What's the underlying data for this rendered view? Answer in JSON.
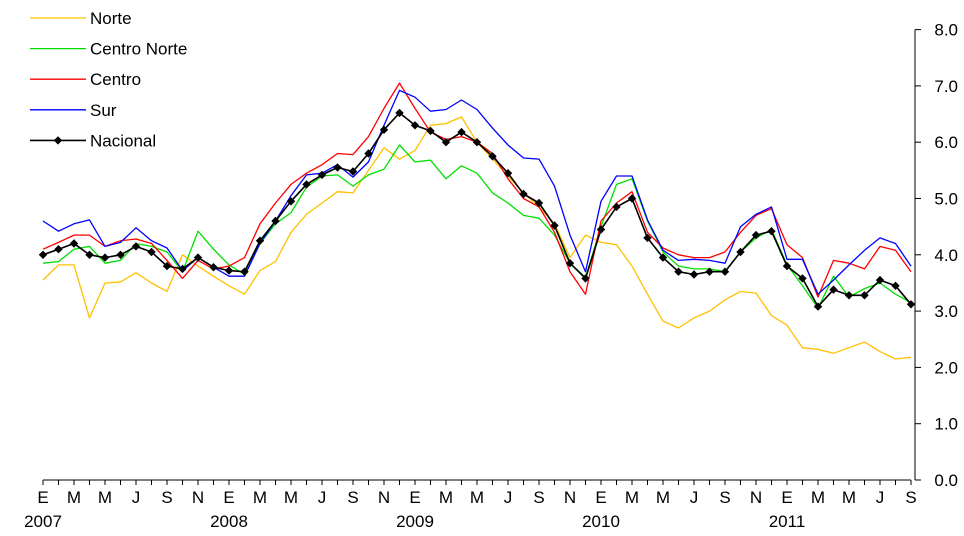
{
  "chart_data": {
    "type": "line",
    "title": "",
    "xlabel": "",
    "ylabel": "",
    "ylim": [
      0,
      8
    ],
    "yticks": [
      "0.0",
      "1.0",
      "2.0",
      "3.0",
      "4.0",
      "5.0",
      "6.0",
      "7.0",
      "8.0"
    ],
    "y_axis_side": "right",
    "grid": false,
    "legend_position": "top-left",
    "x_tick_labels": [
      "E",
      "M",
      "M",
      "J",
      "S",
      "N",
      "E",
      "M",
      "M",
      "J",
      "S",
      "N",
      "E",
      "M",
      "M",
      "J",
      "S",
      "N",
      "E",
      "M",
      "M",
      "J",
      "S",
      "N",
      "E",
      "M",
      "M",
      "J",
      "S"
    ],
    "year_labels": [
      {
        "label": "2007",
        "month_index": 0
      },
      {
        "label": "2008",
        "month_index": 12
      },
      {
        "label": "2009",
        "month_index": 24
      },
      {
        "label": "2010",
        "month_index": 36
      },
      {
        "label": "2011",
        "month_index": 48
      }
    ],
    "x": [
      "2007-01",
      "2007-02",
      "2007-03",
      "2007-04",
      "2007-05",
      "2007-06",
      "2007-07",
      "2007-08",
      "2007-09",
      "2007-10",
      "2007-11",
      "2007-12",
      "2008-01",
      "2008-02",
      "2008-03",
      "2008-04",
      "2008-05",
      "2008-06",
      "2008-07",
      "2008-08",
      "2008-09",
      "2008-10",
      "2008-11",
      "2008-12",
      "2009-01",
      "2009-02",
      "2009-03",
      "2009-04",
      "2009-05",
      "2009-06",
      "2009-07",
      "2009-08",
      "2009-09",
      "2009-10",
      "2009-11",
      "2009-12",
      "2010-01",
      "2010-02",
      "2010-03",
      "2010-04",
      "2010-05",
      "2010-06",
      "2010-07",
      "2010-08",
      "2010-09",
      "2010-10",
      "2010-11",
      "2010-12",
      "2011-01",
      "2011-02",
      "2011-03",
      "2011-04",
      "2011-05",
      "2011-06",
      "2011-07",
      "2011-08",
      "2011-09"
    ],
    "series": [
      {
        "name": "Norte",
        "color": "#FFC000",
        "marker": false,
        "values": [
          3.55,
          3.82,
          3.82,
          2.88,
          3.5,
          3.52,
          3.68,
          3.5,
          3.35,
          4.0,
          3.8,
          3.62,
          3.45,
          3.3,
          3.72,
          3.88,
          4.4,
          4.72,
          4.92,
          5.12,
          5.1,
          5.5,
          5.9,
          5.7,
          5.85,
          6.3,
          6.33,
          6.45,
          6.0,
          5.7,
          5.4,
          5.1,
          4.85,
          4.55,
          3.95,
          4.35,
          4.22,
          4.18,
          3.8,
          3.3,
          2.82,
          2.7,
          2.88,
          3.0,
          3.2,
          3.35,
          3.32,
          2.92,
          2.75,
          2.35,
          2.32,
          2.25,
          2.35,
          2.45,
          2.28,
          2.15,
          2.18
        ]
      },
      {
        "name": "Centro Norte",
        "color": "#00E000",
        "marker": false,
        "values": [
          3.85,
          3.88,
          4.1,
          4.15,
          3.85,
          3.9,
          4.2,
          4.15,
          4.05,
          3.7,
          4.42,
          4.1,
          3.82,
          3.65,
          4.2,
          4.55,
          4.75,
          5.2,
          5.4,
          5.42,
          5.22,
          5.42,
          5.52,
          5.95,
          5.65,
          5.68,
          5.35,
          5.58,
          5.45,
          5.1,
          4.92,
          4.7,
          4.65,
          4.35,
          3.85,
          3.6,
          4.5,
          5.25,
          5.35,
          4.6,
          4.05,
          3.8,
          3.75,
          3.75,
          3.7,
          4.05,
          4.3,
          4.45,
          3.82,
          3.45,
          3.05,
          3.62,
          3.25,
          3.4,
          3.5,
          3.3,
          3.15
        ]
      },
      {
        "name": "Centro",
        "color": "#FF0000",
        "marker": false,
        "values": [
          4.1,
          4.22,
          4.35,
          4.35,
          4.15,
          4.25,
          4.28,
          4.2,
          3.9,
          3.58,
          3.9,
          3.75,
          3.8,
          3.95,
          4.55,
          4.92,
          5.25,
          5.45,
          5.6,
          5.8,
          5.78,
          6.1,
          6.6,
          7.05,
          6.6,
          6.18,
          6.05,
          6.1,
          6.0,
          5.8,
          5.35,
          5.0,
          4.85,
          4.4,
          3.7,
          3.3,
          4.6,
          4.92,
          5.12,
          4.4,
          4.12,
          4.0,
          3.95,
          3.95,
          4.05,
          4.4,
          4.7,
          4.82,
          4.18,
          3.95,
          3.25,
          3.9,
          3.85,
          3.75,
          4.15,
          4.08,
          3.7
        ]
      },
      {
        "name": "Sur",
        "color": "#0000FF",
        "marker": false,
        "values": [
          4.6,
          4.42,
          4.55,
          4.62,
          4.15,
          4.22,
          4.48,
          4.25,
          4.12,
          3.72,
          3.95,
          3.78,
          3.62,
          3.62,
          4.2,
          4.6,
          5.05,
          5.42,
          5.45,
          5.6,
          5.38,
          5.65,
          6.3,
          6.92,
          6.8,
          6.55,
          6.58,
          6.75,
          6.58,
          6.25,
          5.95,
          5.72,
          5.7,
          5.22,
          4.35,
          3.7,
          4.95,
          5.4,
          5.4,
          4.62,
          4.08,
          3.9,
          3.92,
          3.9,
          3.85,
          4.5,
          4.72,
          4.85,
          3.92,
          3.92,
          3.3,
          3.55,
          3.82,
          4.08,
          4.3,
          4.2,
          3.8
        ]
      },
      {
        "name": "Nacional",
        "color": "#000000",
        "marker": true,
        "values": [
          4.0,
          4.1,
          4.2,
          4.0,
          3.95,
          4.0,
          4.15,
          4.05,
          3.8,
          3.75,
          3.95,
          3.78,
          3.72,
          3.7,
          4.25,
          4.6,
          4.95,
          5.25,
          5.42,
          5.55,
          5.48,
          5.8,
          6.22,
          6.52,
          6.3,
          6.2,
          6.0,
          6.18,
          6.0,
          5.75,
          5.45,
          5.08,
          4.92,
          4.52,
          3.85,
          3.58,
          4.45,
          4.85,
          5.0,
          4.3,
          3.95,
          3.7,
          3.65,
          3.7,
          3.7,
          4.05,
          4.35,
          4.42,
          3.8,
          3.58,
          3.08,
          3.38,
          3.28,
          3.28,
          3.55,
          3.45,
          3.12
        ]
      }
    ]
  }
}
